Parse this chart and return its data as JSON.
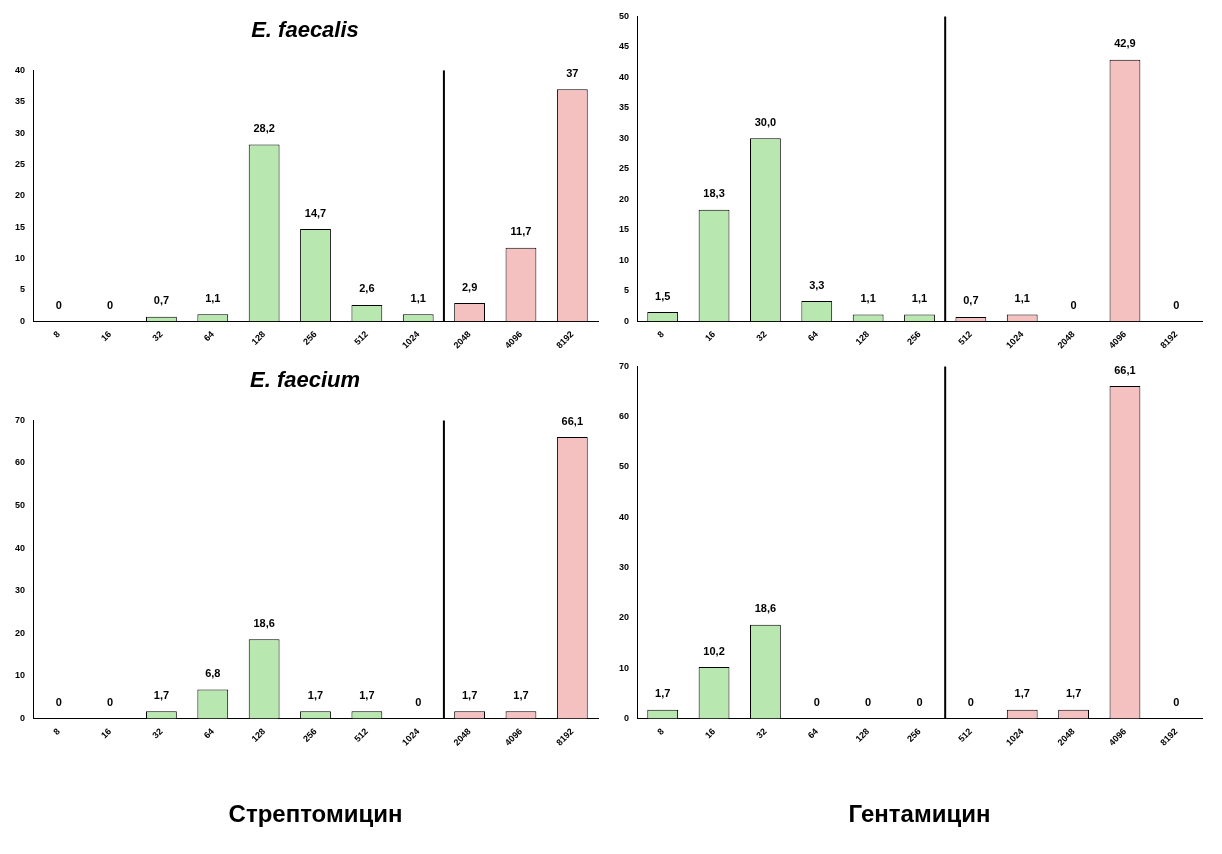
{
  "chart_data": [
    {
      "type": "bar",
      "title": "E. faecalis",
      "categories": [
        "8",
        "16",
        "32",
        "64",
        "128",
        "256",
        "512",
        "1024",
        "2048",
        "4096",
        "8192"
      ],
      "values": [
        0,
        0,
        0.7,
        1.1,
        28.2,
        14.7,
        2.6,
        1.1,
        2.9,
        11.7,
        37
      ],
      "value_labels": [
        "0",
        "0",
        "0,7",
        "1,1",
        "28,2",
        "14,7",
        "2,6",
        "1,1",
        "2,9",
        "11,7",
        "37"
      ],
      "colors": [
        "#b8e8b0",
        "#b8e8b0",
        "#b8e8b0",
        "#b8e8b0",
        "#b8e8b0",
        "#b8e8b0",
        "#b8e8b0",
        "#b8e8b0",
        "#f4c0c0",
        "#f4c0c0",
        "#f4c0c0"
      ],
      "ylim": [
        0,
        40
      ],
      "yticks": [
        0,
        5,
        10,
        15,
        20,
        25,
        30,
        35,
        40
      ],
      "grid": false,
      "legend": false,
      "ref_lines": [
        {
          "axis": "x",
          "value": "2048",
          "color": "#000000"
        }
      ]
    },
    {
      "type": "bar",
      "categories": [
        "8",
        "16",
        "32",
        "64",
        "128",
        "256",
        "512",
        "1024",
        "2048",
        "4096",
        "8192"
      ],
      "values": [
        1.5,
        18.3,
        30.0,
        3.3,
        1.1,
        1.1,
        0.7,
        1.1,
        0,
        42.9,
        0
      ],
      "value_labels": [
        "1,5",
        "18,3",
        "30,0",
        "3,3",
        "1,1",
        "1,1",
        "0,7",
        "1,1",
        "0",
        "42,9",
        "0"
      ],
      "colors": [
        "#b8e8b0",
        "#b8e8b0",
        "#b8e8b0",
        "#b8e8b0",
        "#b8e8b0",
        "#b8e8b0",
        "#f4c0c0",
        "#f4c0c0",
        "#f4c0c0",
        "#f4c0c0",
        "#f4c0c0"
      ],
      "ylim": [
        0,
        50
      ],
      "yticks": [
        0,
        5,
        10,
        15,
        20,
        25,
        30,
        35,
        40,
        45,
        50
      ],
      "grid": false,
      "legend": false,
      "ref_lines": [
        {
          "axis": "x",
          "value": "512",
          "color": "#000000"
        }
      ]
    },
    {
      "type": "bar",
      "title": "E. faecium",
      "xlabel": "Стрептомицин",
      "categories": [
        "8",
        "16",
        "32",
        "64",
        "128",
        "256",
        "512",
        "1024",
        "2048",
        "4096",
        "8192"
      ],
      "values": [
        0,
        0,
        1.7,
        6.8,
        18.6,
        1.7,
        1.7,
        0,
        1.7,
        1.7,
        66.1
      ],
      "value_labels": [
        "0",
        "0",
        "1,7",
        "6,8",
        "18,6",
        "1,7",
        "1,7",
        "0",
        "1,7",
        "1,7",
        "66,1"
      ],
      "colors": [
        "#b8e8b0",
        "#b8e8b0",
        "#b8e8b0",
        "#b8e8b0",
        "#b8e8b0",
        "#b8e8b0",
        "#b8e8b0",
        "#b8e8b0",
        "#f4c0c0",
        "#f4c0c0",
        "#f4c0c0"
      ],
      "ylim": [
        0,
        70
      ],
      "yticks": [
        0,
        10,
        20,
        30,
        40,
        50,
        60,
        70
      ],
      "grid": false,
      "legend": false,
      "ref_lines": [
        {
          "axis": "x",
          "value": "2048",
          "color": "#000000"
        }
      ]
    },
    {
      "type": "bar",
      "xlabel": "Гентамицин",
      "categories": [
        "8",
        "16",
        "32",
        "64",
        "128",
        "256",
        "512",
        "1024",
        "2048",
        "4096",
        "8192"
      ],
      "values": [
        1.7,
        10.2,
        18.6,
        0,
        0,
        0,
        0,
        1.7,
        1.7,
        66.1,
        0
      ],
      "value_labels": [
        "1,7",
        "10,2",
        "18,6",
        "0",
        "0",
        "0",
        "0",
        "1,7",
        "1,7",
        "66,1",
        "0"
      ],
      "colors": [
        "#b8e8b0",
        "#b8e8b0",
        "#b8e8b0",
        "#b8e8b0",
        "#b8e8b0",
        "#b8e8b0",
        "#f4c0c0",
        "#f4c0c0",
        "#f4c0c0",
        "#f4c0c0",
        "#f4c0c0"
      ],
      "ylim": [
        0,
        70
      ],
      "yticks": [
        0,
        10,
        20,
        30,
        40,
        50,
        60,
        70
      ],
      "grid": false,
      "legend": false,
      "ref_lines": [
        {
          "axis": "x",
          "value": "512",
          "color": "#000000"
        }
      ]
    }
  ]
}
